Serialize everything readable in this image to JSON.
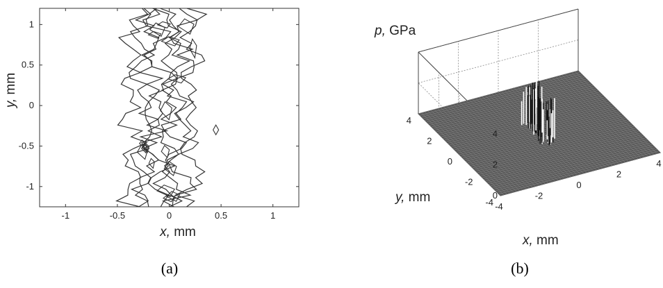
{
  "chart_data": [
    {
      "type": "contour",
      "xlabel": "x, mm",
      "ylabel": "y, mm",
      "xlim": [
        -1.25,
        1.25
      ],
      "ylim": [
        -1.25,
        1.2
      ],
      "xticks": [
        "-1",
        "-0.5",
        "0",
        "0.5",
        "1"
      ],
      "yticks": [
        "1",
        "0.5",
        "0",
        "-0.5",
        "-1"
      ],
      "xtick_values": [
        -1,
        -0.5,
        0,
        0.5,
        1
      ],
      "ytick_values": [
        1,
        0.5,
        0,
        -0.5,
        -1
      ],
      "contour_band": {
        "x_center": 0.0,
        "x_halfwidth": 0.35,
        "y_range": [
          -1.25,
          1.2
        ]
      },
      "caption": "(a)"
    },
    {
      "type": "surface",
      "xlabel": "x, mm",
      "ylabel": "y, mm",
      "zlabel": "p, GPa",
      "xlim": [
        -4,
        4
      ],
      "ylim": [
        -4,
        4
      ],
      "zlim": [
        0,
        4
      ],
      "xticks": [
        "-4",
        "-2",
        "0",
        "2",
        "4"
      ],
      "yticks": [
        "4",
        "2",
        "0",
        "-2",
        "-4"
      ],
      "zticks": [
        "4",
        "2",
        "0"
      ],
      "xtick_values": [
        -4,
        -2,
        0,
        2,
        4
      ],
      "ytick_values": [
        4,
        2,
        0,
        -2,
        -4
      ],
      "ztick_values": [
        4,
        2,
        0
      ],
      "grid": true,
      "peak_region": {
        "x_range": [
          -0.4,
          0.4
        ],
        "y_range": [
          -1.2,
          1.2
        ],
        "max_pressure": 3.0
      },
      "caption": "(b)"
    }
  ],
  "labels": {
    "a_xlabel_var": "x,",
    "a_xlabel_unit": " mm",
    "a_ylabel_var": "y,",
    "a_ylabel_unit": " mm",
    "b_zlabel_var": "p,",
    "b_zlabel_unit": " GPa",
    "b_ylabel_var": "y,",
    "b_ylabel_unit": " mm",
    "b_xlabel_var": "x,",
    "b_xlabel_unit": " mm"
  }
}
